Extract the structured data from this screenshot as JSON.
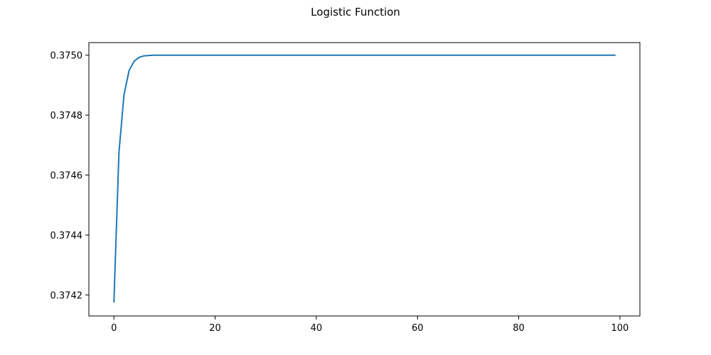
{
  "chart_data": {
    "type": "line",
    "title": "Logistic Function",
    "xlabel": "",
    "ylabel": "",
    "xlim": [
      -4.95,
      103.95
    ],
    "ylim": [
      0.37413,
      0.375042
    ],
    "x_ticks": [
      0,
      20,
      40,
      60,
      80,
      100
    ],
    "y_ticks": [
      0.3742,
      0.3744,
      0.3746,
      0.3748,
      0.375
    ],
    "x_tick_labels": [
      "0",
      "20",
      "40",
      "60",
      "80",
      "100"
    ],
    "y_tick_labels": [
      "0.3742",
      "0.3744",
      "0.3746",
      "0.3748",
      "0.3750"
    ],
    "grid": false,
    "series": [
      {
        "color": "#1f77b4",
        "x": [
          0,
          1,
          2,
          3,
          4,
          5,
          6,
          7,
          8,
          9,
          10,
          99
        ],
        "y": [
          0.374177,
          0.374677,
          0.374869,
          0.374949,
          0.37498,
          0.374993,
          0.374998,
          0.374999,
          0.375,
          0.375,
          0.375,
          0.375
        ]
      }
    ]
  }
}
